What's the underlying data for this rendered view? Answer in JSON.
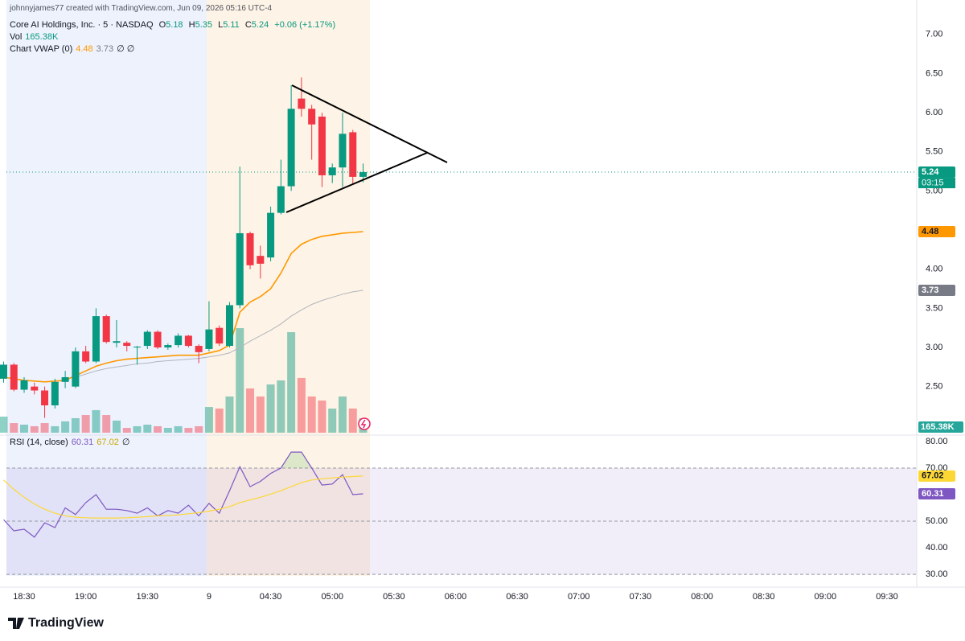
{
  "header": {
    "creator": "johnnyjames77 created with TradingView.com, Jun 09, 2026 05:16 UTC-4",
    "brand": "TradingView"
  },
  "chart_data": {
    "type": "candlestick",
    "title": "Core AI Holdings, Inc. · 5 · NASDAQ",
    "ohlc_labels": [
      "O",
      "H",
      "L",
      "C"
    ],
    "change": "+0.06 (+1.17%)",
    "countdown": "03:15",
    "open": [
      2.6,
      2.78,
      2.46,
      2.5,
      2.45,
      2.26,
      2.56,
      2.5,
      2.95,
      2.82,
      3.4,
      3.06,
      3.06,
      3.0,
      3.02,
      3.2,
      3.0,
      3.03,
      3.15,
      3.02,
      2.98,
      3.25,
      3.02,
      3.54,
      4.46,
      4.17,
      4.15,
      4.72,
      5.06,
      6.18,
      6.05,
      5.95,
      5.2,
      5.3,
      5.75,
      5.18
    ],
    "high": [
      2.82,
      2.8,
      2.62,
      2.55,
      2.5,
      2.6,
      2.7,
      3.0,
      3.02,
      3.5,
      3.42,
      3.35,
      3.08,
      3.02,
      3.22,
      3.22,
      3.05,
      3.18,
      3.16,
      3.04,
      3.59,
      3.28,
      3.58,
      5.31,
      4.48,
      4.3,
      4.8,
      5.4,
      6.35,
      6.45,
      6.1,
      6.0,
      5.35,
      6.0,
      5.78,
      5.35
    ],
    "low": [
      2.55,
      2.44,
      2.42,
      2.4,
      2.1,
      2.22,
      2.48,
      2.48,
      2.8,
      2.8,
      3.05,
      3.0,
      2.95,
      2.78,
      2.98,
      2.98,
      2.97,
      3.0,
      3.0,
      2.8,
      2.95,
      3.02,
      3.0,
      3.5,
      4.0,
      3.88,
      4.1,
      4.7,
      5.0,
      5.95,
      5.4,
      5.05,
      5.1,
      5.05,
      5.08,
      5.11
    ],
    "close": [
      2.78,
      2.46,
      2.58,
      2.45,
      2.26,
      2.56,
      2.62,
      2.95,
      2.82,
      3.4,
      3.07,
      3.08,
      3.02,
      3.01,
      3.2,
      3.0,
      3.03,
      3.15,
      3.02,
      2.94,
      3.23,
      3.05,
      3.54,
      4.46,
      4.05,
      4.07,
      4.72,
      5.06,
      6.05,
      6.05,
      5.85,
      5.2,
      5.3,
      5.73,
      5.18,
      5.24
    ],
    "up_color": "#089981",
    "down_color": "#f23645",
    "volume": {
      "name": "Vol",
      "values": [
        184000,
        110000,
        92000,
        74000,
        110000,
        74000,
        129000,
        166000,
        202000,
        258000,
        202000,
        138000,
        55000,
        74000,
        92000,
        74000,
        55000,
        74000,
        55000,
        74000,
        294000,
        276000,
        414000,
        1196000,
        506000,
        414000,
        552000,
        598000,
        1150000,
        626000,
        414000,
        368000,
        276000,
        414000,
        276000,
        165380
      ],
      "value_labels": [
        null,
        null,
        null,
        null,
        null,
        null,
        null,
        null,
        null,
        null,
        null,
        null,
        null,
        null,
        null,
        null,
        null,
        null,
        null,
        null,
        null,
        null,
        null,
        null,
        null,
        null,
        null,
        null,
        null,
        null,
        null,
        null,
        null,
        null,
        null,
        "165.38K"
      ],
      "up_color": "rgba(8,153,129,0.45)",
      "down_color": "rgba(242,54,69,0.45)",
      "label_color": "#26a69a"
    },
    "indicator": {
      "name": "Chart VWAP (0)",
      "extra": "∅ ∅"
    },
    "series": [
      {
        "color": "#ff9800",
        "values": [
          2.62,
          2.6,
          2.58,
          2.57,
          2.56,
          2.57,
          2.58,
          2.64,
          2.7,
          2.76,
          2.8,
          2.83,
          2.85,
          2.86,
          2.87,
          2.88,
          2.89,
          2.9,
          2.9,
          2.9,
          2.93,
          2.96,
          3.03,
          3.45,
          3.58,
          3.65,
          3.75,
          3.95,
          4.2,
          4.32,
          4.38,
          4.42,
          4.44,
          4.46,
          4.47,
          4.48
        ]
      },
      {
        "color": "#b2b5be",
        "values": [
          null,
          null,
          null,
          null,
          null,
          null,
          null,
          2.62,
          2.66,
          2.7,
          2.73,
          2.75,
          2.77,
          2.79,
          2.8,
          2.82,
          2.83,
          2.84,
          2.85,
          2.86,
          2.88,
          2.9,
          2.93,
          3.0,
          3.08,
          3.15,
          3.22,
          3.3,
          3.4,
          3.48,
          3.55,
          3.6,
          3.64,
          3.68,
          3.71,
          3.73
        ]
      }
    ],
    "xlim": [
      -0.35,
      88.9
    ],
    "xticks": [
      {
        "value": 2,
        "label": "18:30"
      },
      {
        "value": 8,
        "label": "19:00"
      },
      {
        "value": 14,
        "label": "19:30"
      },
      {
        "value": 20,
        "label": "9"
      },
      {
        "value": 26,
        "label": "04:30"
      },
      {
        "value": 32,
        "label": "05:00"
      },
      {
        "value": 38,
        "label": "05:30"
      },
      {
        "value": 44,
        "label": "06:00"
      },
      {
        "value": 50,
        "label": "06:30"
      },
      {
        "value": 56,
        "label": "07:00"
      },
      {
        "value": 62,
        "label": "07:30"
      },
      {
        "value": 68,
        "label": "08:00"
      },
      {
        "value": 74,
        "label": "08:30"
      },
      {
        "value": 80,
        "label": "09:00"
      },
      {
        "value": 86,
        "label": "09:30"
      }
    ],
    "ylim": [
      1.89,
      7.44
    ],
    "yticks": [
      {
        "value": 2.5,
        "label": "2.50"
      },
      {
        "value": 3,
        "label": "3.00"
      },
      {
        "value": 3.5,
        "label": "3.50"
      },
      {
        "value": 4,
        "label": "4.00"
      },
      {
        "value": 4.5,
        "label": "4.50"
      },
      {
        "value": 5,
        "label": "5.00"
      },
      {
        "value": 5.5,
        "label": "5.50"
      },
      {
        "value": 6,
        "label": "6.00"
      },
      {
        "value": 6.5,
        "label": "6.50"
      },
      {
        "value": 7,
        "label": "7.00"
      }
    ],
    "rsi": {
      "name": "RSI (14, close)",
      "extra": "∅",
      "ylim": [
        25.2,
        82.4
      ],
      "yticks": [
        {
          "value": 30,
          "label": "30.00"
        },
        {
          "value": 40,
          "label": "40.00"
        },
        {
          "value": 50,
          "label": "50.00"
        },
        {
          "value": 60,
          "label": "60.00"
        },
        {
          "value": 70,
          "label": "70.00"
        },
        {
          "value": 80,
          "label": "80.00"
        }
      ],
      "bands": {
        "upper": 70,
        "middle": 50,
        "lower": 30
      },
      "fill": "rgba(126,87,194,0.1)",
      "overbought_fill": "rgba(76,175,80,0.18)",
      "series": [
        {
          "color": "#7e57c2",
          "values": [
            50.6,
            46.4,
            47,
            44,
            49.4,
            47.6,
            55,
            52.5,
            57,
            60,
            54.5,
            54.5,
            54,
            53,
            55,
            52,
            54,
            53,
            56,
            52,
            56.7,
            53,
            61.5,
            70.5,
            63,
            65,
            68,
            70,
            76,
            76,
            70,
            63.6,
            64,
            67.5,
            60,
            60.31
          ]
        },
        {
          "color": "#fdd835",
          "values": [
            65.5,
            62,
            59,
            56.5,
            54.5,
            53,
            52,
            51.5,
            51.3,
            51.2,
            51.2,
            51.2,
            51.3,
            51.5,
            51.7,
            52,
            52.2,
            52.4,
            52.8,
            53.2,
            53.8,
            54.5,
            55.5,
            57,
            58,
            59,
            60.2,
            61.5,
            63,
            64.5,
            65.5,
            66,
            66.3,
            66.6,
            66.8,
            67.02
          ]
        }
      ]
    }
  }
}
